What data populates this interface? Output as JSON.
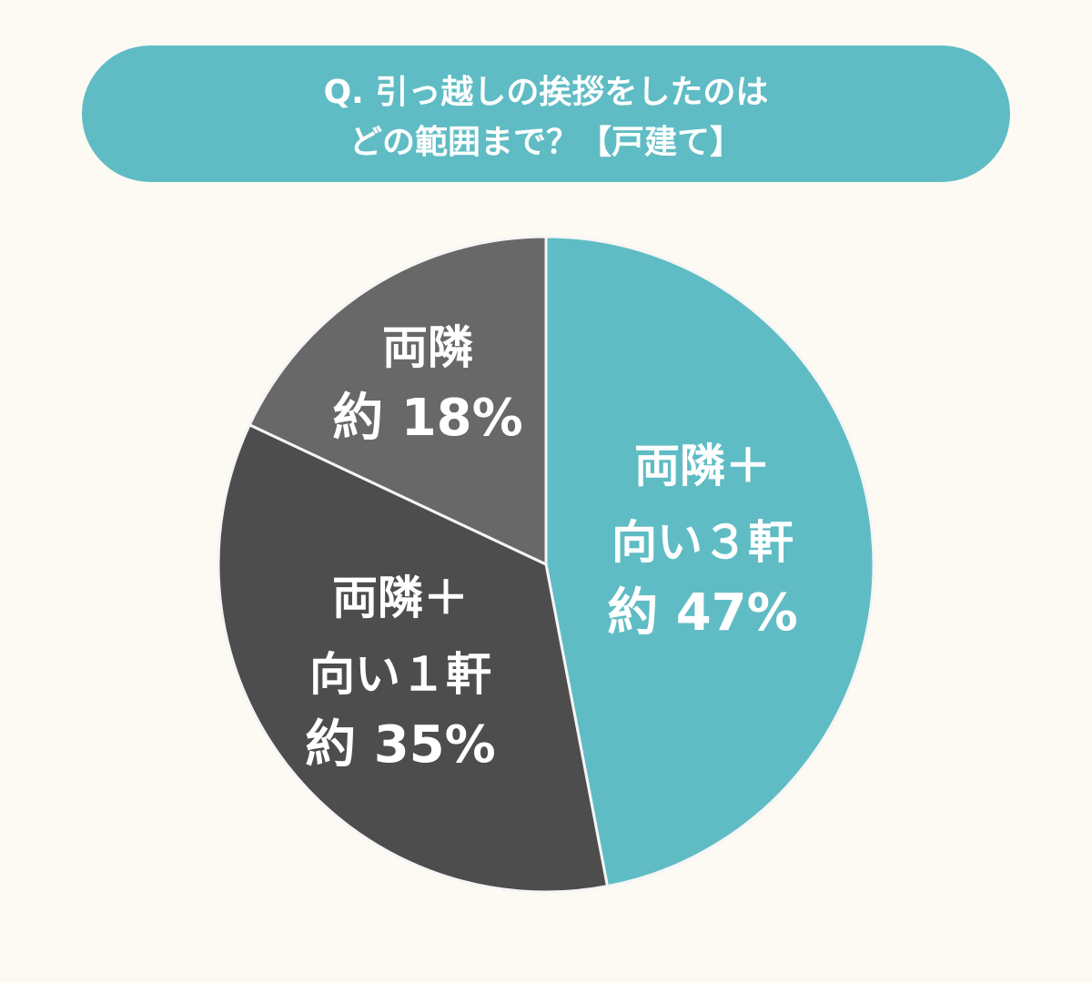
{
  "chart_data": {
    "type": "pie",
    "title": [
      "Q. 引っ越しの挨拶をしたのは",
      "どの範囲まで？【戸建て】"
    ],
    "categories": [
      "両隣＋\n向い３軒",
      "両隣＋\n向い１軒",
      "両隣"
    ],
    "values": [
      47,
      35,
      18
    ],
    "value_labels": [
      "約 47%",
      "約 35%",
      "約 18%"
    ],
    "colors": [
      "#5fbcc4",
      "#4d4d4d",
      "#686868"
    ]
  }
}
